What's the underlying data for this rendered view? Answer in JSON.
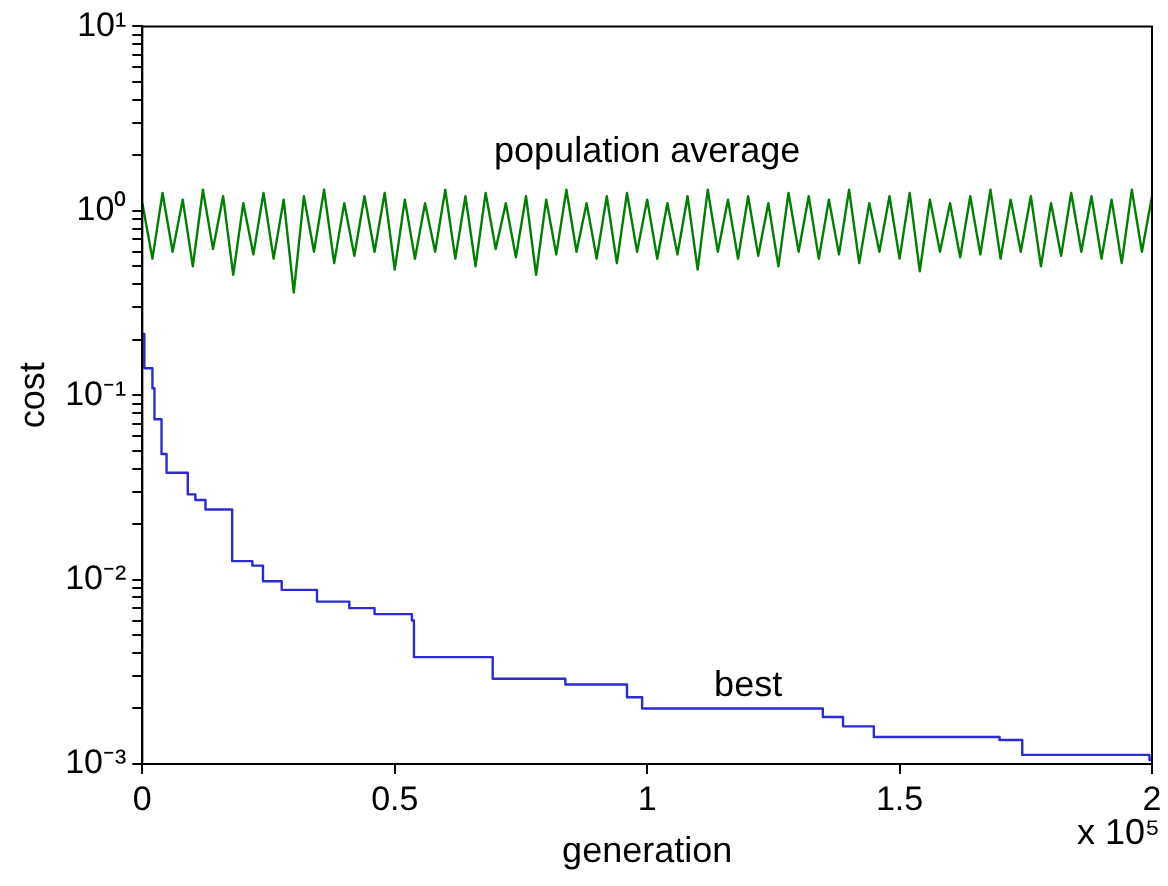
{
  "chart_data": {
    "type": "step",
    "xlabel": "generation",
    "ylabel": "cost",
    "log": "y",
    "grid": false,
    "legend": false,
    "marker": "none",
    "line_style": "solid",
    "xlim": [
      0,
      2
    ],
    "xticks": [
      0,
      0.5,
      1,
      1.5,
      2
    ],
    "ylim": [
      0.001,
      10
    ],
    "yticks": [
      {
        "value": 0.001,
        "label": "10⁻³"
      },
      {
        "value": 0.002,
        "label": null
      },
      {
        "value": 0.003,
        "label": null
      },
      {
        "value": 0.004,
        "label": null
      },
      {
        "value": 0.005,
        "label": null
      },
      {
        "value": 0.006,
        "label": null
      },
      {
        "value": 0.007,
        "label": null
      },
      {
        "value": 0.008,
        "label": null
      },
      {
        "value": 0.009,
        "label": null
      },
      {
        "value": 0.01,
        "label": "10⁻²"
      },
      {
        "value": 0.02,
        "label": null
      },
      {
        "value": 0.03,
        "label": null
      },
      {
        "value": 0.04,
        "label": null
      },
      {
        "value": 0.05,
        "label": null
      },
      {
        "value": 0.06,
        "label": null
      },
      {
        "value": 0.07,
        "label": null
      },
      {
        "value": 0.08,
        "label": null
      },
      {
        "value": 0.09,
        "label": null
      },
      {
        "value": 0.1,
        "label": "10⁻¹"
      },
      {
        "value": 0.2,
        "label": null
      },
      {
        "value": 0.3,
        "label": null
      },
      {
        "value": 0.4,
        "label": null
      },
      {
        "value": 0.5,
        "label": null
      },
      {
        "value": 0.6,
        "label": null
      },
      {
        "value": 0.7,
        "label": null
      },
      {
        "value": 0.8,
        "label": null
      },
      {
        "value": 0.9,
        "label": null
      },
      {
        "value": 1,
        "label": "10⁰"
      },
      {
        "value": 2,
        "label": null
      },
      {
        "value": 3,
        "label": null
      },
      {
        "value": 4,
        "label": null
      },
      {
        "value": 5,
        "label": null
      },
      {
        "value": 6,
        "label": null
      },
      {
        "value": 7,
        "label": null
      },
      {
        "value": 8,
        "label": null
      },
      {
        "value": 9,
        "label": null
      },
      {
        "value": 10,
        "label": "10¹"
      }
    ],
    "series": [
      {
        "name": "population average",
        "type": "line",
        "color": "#008000",
        "x": [
          0,
          0.02,
          0.04,
          0.06,
          0.08,
          0.1,
          0.12,
          0.14,
          0.16,
          0.18,
          0.2,
          0.22,
          0.24,
          0.26,
          0.28,
          0.3,
          0.32,
          0.34,
          0.36,
          0.38,
          0.4,
          0.42,
          0.44,
          0.46,
          0.48,
          0.5,
          0.52,
          0.54,
          0.56,
          0.58,
          0.6,
          0.62,
          0.64,
          0.66,
          0.68,
          0.7,
          0.72,
          0.74,
          0.76,
          0.78,
          0.8,
          0.82,
          0.84,
          0.86,
          0.88,
          0.9,
          0.92,
          0.94,
          0.96,
          0.98,
          1,
          1.02,
          1.04,
          1.06,
          1.08,
          1.1,
          1.12,
          1.14,
          1.16,
          1.18,
          1.2,
          1.22,
          1.24,
          1.26,
          1.28,
          1.3,
          1.32,
          1.34,
          1.36,
          1.38,
          1.4,
          1.42,
          1.44,
          1.46,
          1.48,
          1.5,
          1.52,
          1.54,
          1.56,
          1.58,
          1.6,
          1.62,
          1.64,
          1.66,
          1.68,
          1.7,
          1.72,
          1.74,
          1.76,
          1.78,
          1.8,
          1.82,
          1.84,
          1.86,
          1.88,
          1.9,
          1.92,
          1.94,
          1.96,
          1.98,
          2
        ],
        "values": [
          1.1,
          0.55,
          1.25,
          0.6,
          1.15,
          0.5,
          1.3,
          0.62,
          1.2,
          0.45,
          1.1,
          0.58,
          1.25,
          0.55,
          1.15,
          0.36,
          1.2,
          0.6,
          1.3,
          0.52,
          1.1,
          0.57,
          1.2,
          0.6,
          1.25,
          0.48,
          1.15,
          0.55,
          1.1,
          0.6,
          1.3,
          0.55,
          1.2,
          0.5,
          1.25,
          0.62,
          1.1,
          0.56,
          1.2,
          0.45,
          1.15,
          0.58,
          1.3,
          0.6,
          1.1,
          0.55,
          1.2,
          0.52,
          1.25,
          0.6,
          1.15,
          0.55,
          1.1,
          0.58,
          1.2,
          0.48,
          1.3,
          0.6,
          1.15,
          0.55,
          1.2,
          0.57,
          1.1,
          0.5,
          1.25,
          0.6,
          1.2,
          0.55,
          1.15,
          0.58,
          1.3,
          0.52,
          1.1,
          0.6,
          1.2,
          0.55,
          1.25,
          0.47,
          1.15,
          0.6,
          1.1,
          0.56,
          1.2,
          0.58,
          1.3,
          0.55,
          1.15,
          0.6,
          1.2,
          0.5,
          1.1,
          0.57,
          1.25,
          0.6,
          1.2,
          0.55,
          1.15,
          0.52,
          1.3,
          0.6,
          1.2
        ]
      },
      {
        "name": "best",
        "color": "#2b2bd0",
        "x": [
          0,
          0.004,
          0.02,
          0.024,
          0.038,
          0.048,
          0.09,
          0.105,
          0.125,
          0.178,
          0.218,
          0.239,
          0.276,
          0.346,
          0.41,
          0.46,
          0.534,
          0.538,
          0.694,
          0.838,
          0.96,
          0.99,
          1.348,
          1.388,
          1.449,
          1.698,
          1.743,
          1.995,
          2
        ],
        "values": [
          0.215,
          0.14,
          0.109,
          0.074,
          0.048,
          0.038,
          0.029,
          0.027,
          0.024,
          0.0126,
          0.0119,
          0.0098,
          0.0088,
          0.0076,
          0.007,
          0.0065,
          0.006,
          0.0038,
          0.0029,
          0.0027,
          0.0023,
          0.002,
          0.0018,
          0.0016,
          0.0014,
          0.00135,
          0.00112,
          0.00105,
          0.00105
        ]
      }
    ],
    "annotations": [
      "x 10⁵"
    ]
  }
}
